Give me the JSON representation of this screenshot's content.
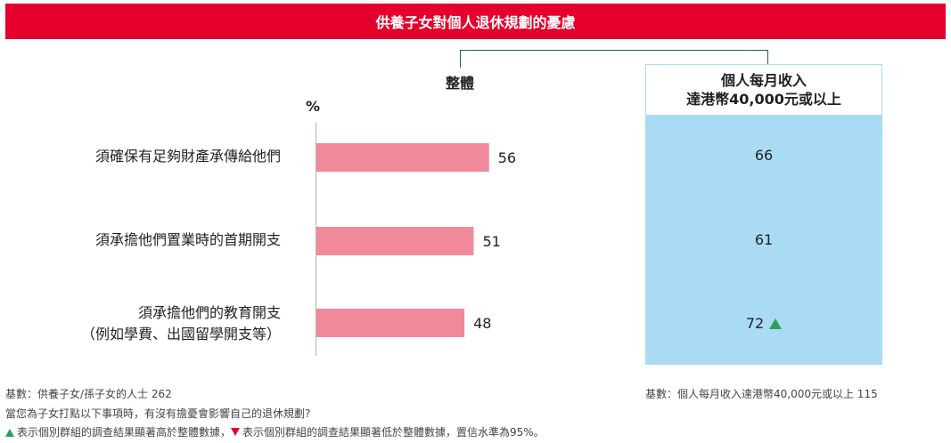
{
  "header": {
    "title": "供養子女對個人退休規劃的憂慮"
  },
  "columns": {
    "overall": "整體",
    "segment_line1": "個人每月收入",
    "segment_line2": "達港幣40,000元或以上"
  },
  "chart_data": {
    "type": "bar",
    "orientation": "horizontal",
    "unit_label": "%",
    "categories": [
      [
        "須確保有足夠財產承傳給他們"
      ],
      [
        "須承擔他們置業時的首期開支"
      ],
      [
        "須承擔他們的教育開支",
        "（例如學費、出國留學開支等）"
      ]
    ],
    "series": [
      {
        "name": "整體",
        "values": [
          56,
          51,
          48
        ]
      },
      {
        "name": "個人每月收入達港幣40,000元或以上",
        "values": [
          66,
          61,
          72
        ],
        "significance": [
          "",
          "",
          "higher"
        ]
      }
    ],
    "xlim": [
      0,
      100
    ],
    "colors": {
      "overall_bar": "#f08a9a",
      "segment_fill": "#a9dbf5",
      "title_bar": "#e4002b",
      "up": "#2ca05a",
      "down": "#e4002b"
    }
  },
  "footnotes": {
    "base_overall": "基數：供養子女/孫子女的人士 262",
    "base_segment": "基數：個人每月收入達港幣40,000元或以上  115",
    "question": "當您為子女打點以下事項時，有沒有擔憂會影響自己的退休規劃?",
    "legend_up": "表示個別群組的調查結果顯著高於整體數據，",
    "legend_down": "表示個別群組的調查結果顯著低於整體數據，置信水準為95%。"
  }
}
